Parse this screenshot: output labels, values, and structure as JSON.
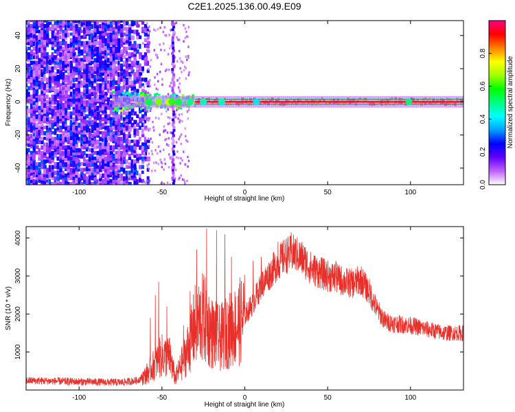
{
  "title": "C2E1.2025.136.00.49.E09",
  "chart_data": [
    {
      "type": "heatmap",
      "xlabel": "Height of straight line (km)",
      "ylabel": "Frequency (Hz)",
      "xlim": [
        -132,
        132
      ],
      "ylim": [
        -50,
        49
      ],
      "xticks": [
        -100,
        -50,
        0,
        50,
        100
      ],
      "yticks": [
        -40,
        -20,
        0,
        20,
        40
      ],
      "colorbar": {
        "label": "Normalized spectral amplitude",
        "range": [
          0,
          1
        ],
        "ticks": [
          0.0,
          0.2,
          0.4,
          0.6,
          0.8
        ],
        "tick_labels": [
          "0.0",
          "0.2",
          "0.4",
          "0.6",
          "0.8"
        ],
        "colors": [
          "#ffffff",
          "#c060ff",
          "#6000ff",
          "#0000ff",
          "#00a0ff",
          "#00ffff",
          "#00ff80",
          "#00ff00",
          "#a0ff00",
          "#ffff00",
          "#ff8000",
          "#ff0000",
          "#ff0080"
        ]
      },
      "features": {
        "noise_region_x": [
          -132,
          -60
        ],
        "vertical_stripe_x": -43,
        "carrier_band_x": [
          -80,
          132
        ],
        "carrier_freq": 0,
        "carrier_halfwidth_hz": 1.5,
        "strong_from_x": -30
      },
      "grid": false
    },
    {
      "type": "line",
      "xlabel": "Height of straight line (km)",
      "ylabel": "SNR (10 * v/v)",
      "xlim": [
        -132,
        132
      ],
      "ylim": [
        0,
        4300
      ],
      "xticks": [
        -100,
        -50,
        0,
        50,
        100
      ],
      "yticks": [
        1000,
        2000,
        3000,
        4000
      ],
      "color": "#e8302a",
      "profile": {
        "x": [
          -132,
          -100,
          -75,
          -65,
          -60,
          -55,
          -50,
          -45,
          -42,
          -40,
          -35,
          -30,
          -25,
          -20,
          -15,
          -10,
          -5,
          0,
          5,
          10,
          15,
          20,
          25,
          30,
          35,
          40,
          45,
          50,
          55,
          60,
          65,
          70,
          75,
          80,
          85,
          90,
          100,
          110,
          120,
          132
        ],
        "y": [
          250,
          220,
          200,
          250,
          380,
          650,
          900,
          850,
          300,
          500,
          1000,
          1700,
          1900,
          1500,
          1350,
          1550,
          1700,
          1950,
          2300,
          2750,
          3050,
          3350,
          3550,
          3600,
          3450,
          3200,
          3100,
          3000,
          2950,
          2850,
          2800,
          2900,
          2600,
          2100,
          1800,
          1750,
          1700,
          1600,
          1500,
          1500
        ]
      },
      "spikes": [
        {
          "x": -57,
          "y": 1900
        },
        {
          "x": -54,
          "y": 2500
        },
        {
          "x": -52,
          "y": 2850
        },
        {
          "x": -47,
          "y": 2200
        },
        {
          "x": -37,
          "y": 1700
        },
        {
          "x": -33,
          "y": 2600
        },
        {
          "x": -29,
          "y": 3700
        },
        {
          "x": -23,
          "y": 4250
        },
        {
          "x": -17,
          "y": 4200
        },
        {
          "x": -12,
          "y": 4100
        },
        {
          "x": -8,
          "y": 3500
        },
        {
          "x": 5,
          "y": 3400
        },
        {
          "x": 10,
          "y": 3500
        },
        {
          "x": 20,
          "y": 3900
        },
        {
          "x": 28,
          "y": 4150
        },
        {
          "x": 55,
          "y": 3400
        }
      ],
      "grid": false
    }
  ]
}
